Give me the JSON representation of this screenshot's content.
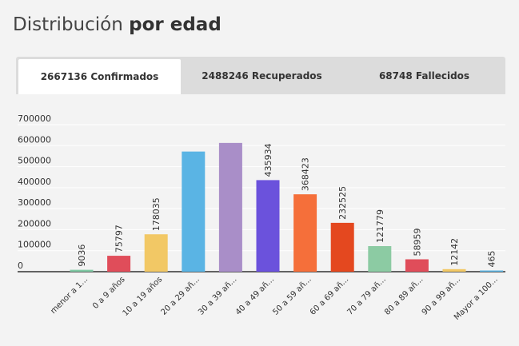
{
  "header": {
    "title_light": "Distribución",
    "title_bold": "por edad"
  },
  "tabs": [
    {
      "label": "2667136 Confirmados",
      "active": true
    },
    {
      "label": "2488246 Recuperados",
      "active": false
    },
    {
      "label": "68748 Fallecidos",
      "active": false
    }
  ],
  "chart_data": {
    "type": "bar",
    "title": "",
    "xlabel": "",
    "ylabel": "",
    "ylim": [
      0,
      700000
    ],
    "yticks": [
      "700000",
      "600000",
      "500000",
      "400000",
      "300000",
      "200000",
      "100000",
      "0"
    ],
    "grid": true,
    "categories": [
      "menor a 1...",
      "0 a 9 años",
      "10 a 19 años",
      "20 a 29 añ...",
      "30 a 39 añ...",
      "40 a 49 añ...",
      "50 a 59 añ...",
      "60 a 69 añ...",
      "70 a 79 añ...",
      "80 a 89 añ...",
      "90 a 99 añ...",
      "Mayor a 100..."
    ],
    "values": [
      9036,
      75797,
      178035,
      572000,
      613000,
      435934,
      368423,
      232525,
      121779,
      58959,
      12142,
      465
    ],
    "value_labels": [
      "9036",
      "75797",
      "178035",
      "",
      "",
      "435934",
      "368423",
      "232525",
      "121779",
      "58959",
      "12142",
      "465"
    ],
    "colors": [
      "#7fc9a3",
      "#e04d5a",
      "#f2c865",
      "#5ab4e4",
      "#a98ec8",
      "#6b52dc",
      "#f56f3a",
      "#e4481f",
      "#8ccba3",
      "#e04d5a",
      "#f2c865",
      "#5ab4e4"
    ]
  }
}
